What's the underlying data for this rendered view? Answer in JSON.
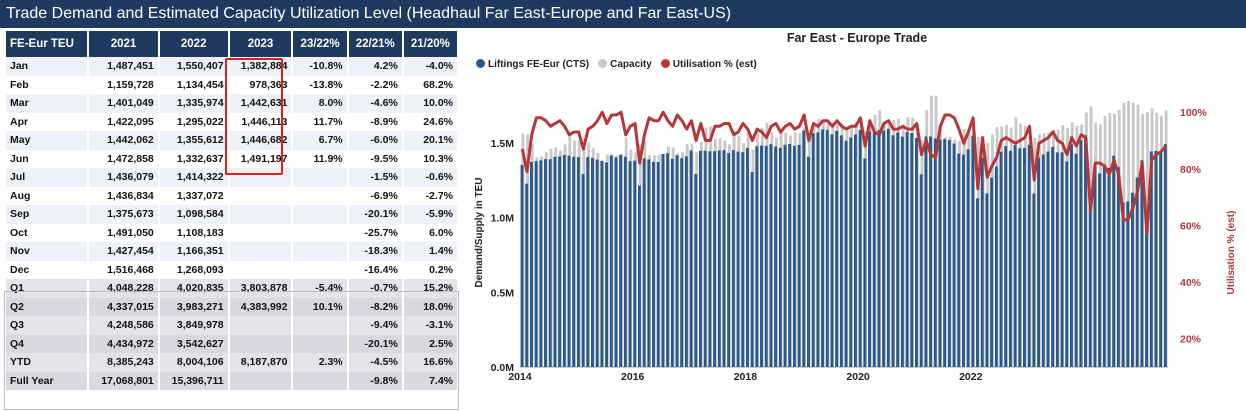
{
  "page_title": "Trade Demand and Estimated Capacity Utilization Level (Headhaul Far East-Europe and Far East-US)",
  "table": {
    "headers": [
      "FE-Eur TEU",
      "2021",
      "2022",
      "2023",
      "23/22%",
      "22/21%",
      "21/20%"
    ],
    "months": [
      [
        "Jan",
        "1,487,451",
        "1,550,407",
        "1,382,884",
        "-10.8%",
        "4.2%",
        "-4.0%"
      ],
      [
        "Feb",
        "1,159,728",
        "1,134,454",
        "978,363",
        "-13.8%",
        "-2.2%",
        "68.2%"
      ],
      [
        "Mar",
        "1,401,049",
        "1,335,974",
        "1,442,631",
        "8.0%",
        "-4.6%",
        "10.0%"
      ],
      [
        "Apr",
        "1,422,095",
        "1,295,022",
        "1,446,113",
        "11.7%",
        "-8.9%",
        "24.6%"
      ],
      [
        "May",
        "1,442,062",
        "1,355,612",
        "1,446,682",
        "6.7%",
        "-6.0%",
        "20.1%"
      ],
      [
        "Jun",
        "1,472,858",
        "1,332,637",
        "1,491,197",
        "11.9%",
        "-9.5%",
        "10.3%"
      ],
      [
        "Jul",
        "1,436,079",
        "1,414,322",
        "",
        "",
        "-1.5%",
        "-0.6%"
      ],
      [
        "Aug",
        "1,436,834",
        "1,337,072",
        "",
        "",
        "-6.9%",
        "-2.7%"
      ],
      [
        "Sep",
        "1,375,673",
        "1,098,584",
        "",
        "",
        "-20.1%",
        "-5.9%"
      ],
      [
        "Oct",
        "1,491,050",
        "1,108,183",
        "",
        "",
        "-25.7%",
        "6.0%"
      ],
      [
        "Nov",
        "1,427,454",
        "1,166,351",
        "",
        "",
        "-18.3%",
        "1.4%"
      ],
      [
        "Dec",
        "1,516,468",
        "1,268,093",
        "",
        "",
        "-16.4%",
        "0.2%"
      ]
    ],
    "quarters": [
      [
        "Q1",
        "4,048,228",
        "4,020,835",
        "3,803,878",
        "-5.4%",
        "-0.7%",
        "15.2%"
      ],
      [
        "Q2",
        "4,337,015",
        "3,983,271",
        "4,383,992",
        "10.1%",
        "-8.2%",
        "18.0%"
      ],
      [
        "Q3",
        "4,248,586",
        "3,849,978",
        "",
        "",
        "-9.4%",
        "-3.1%"
      ],
      [
        "Q4",
        "4,434,972",
        "3,542,627",
        "",
        "",
        "-20.1%",
        "2.5%"
      ],
      [
        "YTD",
        "8,385,243",
        "8,004,106",
        "8,187,870",
        "2.3%",
        "-4.5%",
        "16.6%"
      ],
      [
        "Full Year",
        "17,068,801",
        "15,396,711",
        "",
        "",
        "-9.8%",
        "7.4%"
      ]
    ]
  },
  "chart_data": {
    "type": "bar",
    "title": "Far East - Europe Trade",
    "ylabel": "Demand/Supply in TEU",
    "y2label": "Utilisation % (est)",
    "ylim": [
      0,
      1800000
    ],
    "y2lim": [
      10,
      105
    ],
    "yticks": [
      "0.0M",
      "0.5M",
      "1.0M",
      "1.5M"
    ],
    "y2ticks": [
      "20%",
      "40%",
      "60%",
      "80%",
      "100%"
    ],
    "xticks": [
      "2014",
      "2016",
      "2018",
      "2020",
      "2022"
    ],
    "legend_position": "top-left",
    "series": [
      {
        "name": "Liftings FE-Eur (CTS)",
        "color": "#2b5a8a",
        "values": [
          1353000,
          1227000,
          1373000,
          1378000,
          1383000,
          1391000,
          1390000,
          1406000,
          1409000,
          1419000,
          1414000,
          1407000,
          1405000,
          1291000,
          1404000,
          1398000,
          1388000,
          1380000,
          1369000,
          1415000,
          1402000,
          1419000,
          1407000,
          1377000,
          1381000,
          1214000,
          1396000,
          1389000,
          1372000,
          1371000,
          1425000,
          1431000,
          1393000,
          1417000,
          1397000,
          1410000,
          1449000,
          1291000,
          1446000,
          1447000,
          1443000,
          1444000,
          1449000,
          1451000,
          1432000,
          1451000,
          1442000,
          1437000,
          1466000,
          1304000,
          1477000,
          1482000,
          1480000,
          1491000,
          1476000,
          1467000,
          1487000,
          1492000,
          1479000,
          1486000,
          1583000,
          1407000,
          1564000,
          1570000,
          1590000,
          1587000,
          1556000,
          1580000,
          1550000,
          1514000,
          1536000,
          1556000,
          1586000,
          1396000,
          1576000,
          1574000,
          1585000,
          1581000,
          1594000,
          1551000,
          1569000,
          1541000,
          1573000,
          1566000,
          1532000,
          1289000,
          1542000,
          1542000,
          1529000,
          1521000,
          1525000,
          1519000,
          1495000,
          1428000,
          1421000,
          1457000,
          1548000,
          1128000,
          1398000,
          1162000,
          1268000,
          1342000,
          1441000,
          1478000,
          1446000,
          1485000,
          1463000,
          1465000,
          1487451,
          1159728,
          1401049,
          1422095,
          1442062,
          1472858,
          1436079,
          1436834,
          1375673,
          1491050,
          1427454,
          1516468,
          1550407,
          1134454,
          1335974,
          1295022,
          1355612,
          1332637,
          1414322,
          1337072,
          1098584,
          1108183,
          1166351,
          1268093,
          1382884,
          978363,
          1442631,
          1446113,
          1446682,
          1491197
        ]
      },
      {
        "name": "Capacity",
        "color": "#c9c9c9",
        "values": [
          1561000,
          1556000,
          1493000,
          1402000,
          1409000,
          1437000,
          1460000,
          1470000,
          1449000,
          1494000,
          1544000,
          1515000,
          1516000,
          1491000,
          1499000,
          1464000,
          1433000,
          1374000,
          1422000,
          1423000,
          1416000,
          1426000,
          1534000,
          1456000,
          1436000,
          1481000,
          1513000,
          1419000,
          1415000,
          1420000,
          1426000,
          1474000,
          1469000,
          1431000,
          1437000,
          1494000,
          1491000,
          1436000,
          1505000,
          1601000,
          1608000,
          1524000,
          1530000,
          1514000,
          1491000,
          1584000,
          1550000,
          1498000,
          1567000,
          1455000,
          1575000,
          1601000,
          1634000,
          1572000,
          1533000,
          1570000,
          1567000,
          1549000,
          1570000,
          1565000,
          1602000,
          1562000,
          1626000,
          1660000,
          1640000,
          1632000,
          1636000,
          1625000,
          1630000,
          1608000,
          1618000,
          1637000,
          1622000,
          1582000,
          1629000,
          1687000,
          1719000,
          1640000,
          1646000,
          1652000,
          1662000,
          1620000,
          1672000,
          1666000,
          1594000,
          1520000,
          1720000,
          1815000,
          1816000,
          1600000,
          1536000,
          1542000,
          1523000,
          1514000,
          1593000,
          1561000,
          1583000,
          1539000,
          1544000,
          1500000,
          1557000,
          1605000,
          1609000,
          1620000,
          1602000,
          1668000,
          1629000,
          1612000,
          1568000,
          1534000,
          1558000,
          1565000,
          1569000,
          1588000,
          1587000,
          1619000,
          1598000,
          1636000,
          1614000,
          1623000,
          1703000,
          1745000,
          1636000,
          1623000,
          1680000,
          1700000,
          1695000,
          1720000,
          1768000,
          1780000,
          1767000,
          1754000,
          1696000,
          1704000,
          1730000,
          1701000,
          1681000,
          1719000
        ]
      },
      {
        "name": "Utilisation % (est)",
        "color": "#b5373a",
        "values": [
          87,
          79,
          92,
          98,
          98,
          97,
          95,
          96,
          97,
          95,
          92,
          93,
          93,
          87,
          94,
          95,
          97,
          100,
          96,
          99,
          99,
          100,
          92,
          95,
          96,
          82,
          92,
          98,
          97,
          97,
          100,
          97,
          95,
          99,
          97,
          94,
          97,
          90,
          96,
          90,
          90,
          95,
          95,
          96,
          96,
          92,
          93,
          96,
          94,
          90,
          94,
          93,
          91,
          95,
          96,
          93,
          95,
          96,
          94,
          95,
          99,
          90,
          96,
          95,
          97,
          97,
          95,
          97,
          95,
          94,
          95,
          95,
          98,
          88,
          97,
          93,
          92,
          96,
          97,
          94,
          94,
          95,
          94,
          94,
          96,
          85,
          90,
          85,
          84,
          95,
          99,
          99,
          98,
          94,
          89,
          93,
          98,
          73,
          91,
          77,
          81,
          84,
          90,
          91,
          90,
          89,
          90,
          91,
          95,
          76,
          89,
          90,
          91,
          93,
          90,
          89,
          85,
          91,
          88,
          92,
          91,
          65,
          82,
          82,
          81,
          78,
          83,
          78,
          62,
          62,
          66,
          72,
          82,
          57,
          83,
          85,
          86,
          88
        ]
      }
    ]
  }
}
